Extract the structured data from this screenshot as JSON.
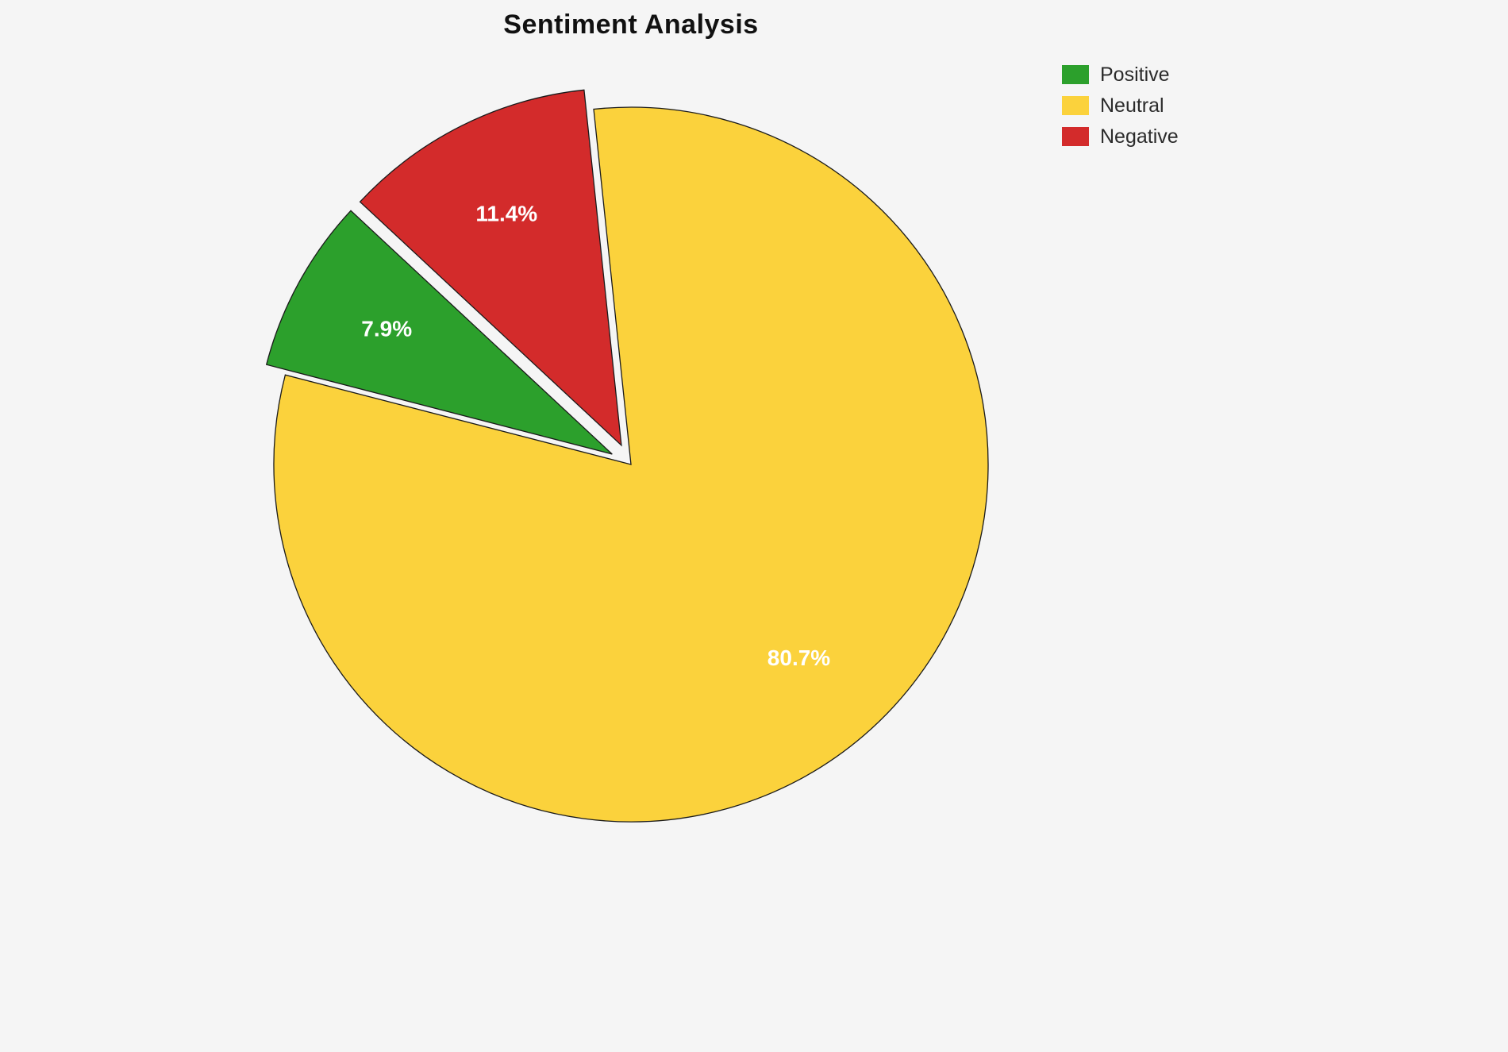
{
  "chart_data": {
    "type": "pie",
    "title": "Sentiment Analysis",
    "categories": [
      "Positive",
      "Neutral",
      "Negative"
    ],
    "values": [
      7.9,
      80.7,
      11.4
    ],
    "percent_labels": [
      "7.9%",
      "80.7%",
      "11.4%"
    ],
    "colors": [
      "#2ca02c",
      "#fbd23c",
      "#d32b2b"
    ],
    "explode": [
      0.06,
      0,
      0.06
    ],
    "start_angle_deg": 96,
    "ccw_draw_order": [
      2,
      0,
      1
    ],
    "label_distance": 0.72,
    "edge_color": "#1a1a1a",
    "label_color": "#ffffff",
    "legend_position": "upper right",
    "background": "#f5f5f5"
  }
}
